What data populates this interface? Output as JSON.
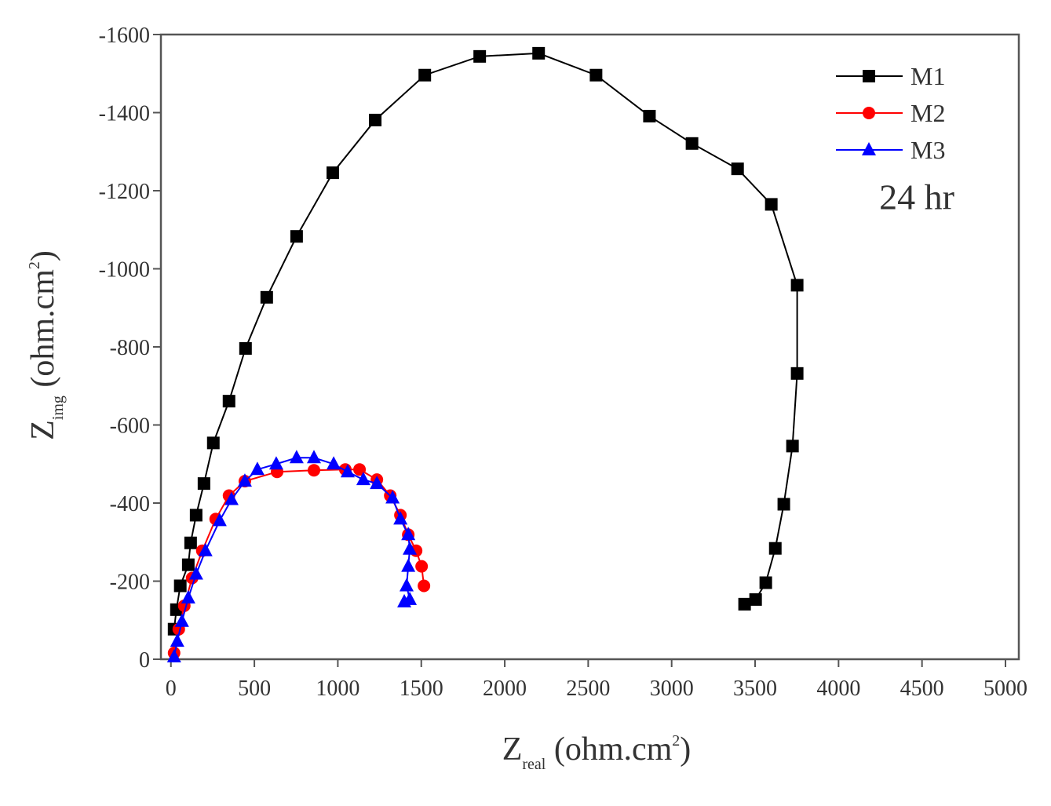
{
  "chart_data": {
    "type": "line",
    "xlabel": [
      "Z",
      "real",
      " (ohm.cm",
      "2",
      ")"
    ],
    "ylabel": [
      "Z",
      "img",
      " (ohm.cm",
      "2",
      ")"
    ],
    "annotation": "24 hr",
    "xlim": [
      -60,
      5080
    ],
    "xticks": [
      0,
      500,
      1000,
      1500,
      2000,
      2500,
      3000,
      3500,
      4000,
      4500,
      5000
    ],
    "ylim": [
      0,
      -1600
    ],
    "yticks": [
      0,
      -200,
      -400,
      -600,
      -800,
      -1000,
      -1200,
      -1400,
      -1600
    ],
    "legend": "top-right",
    "series": [
      {
        "name": "M1",
        "color": "#000000",
        "marker": "square",
        "x": [
          19,
          33,
          56,
          104,
          118,
          151,
          198,
          254,
          348,
          447,
          574,
          753,
          970,
          1224,
          1521,
          1850,
          2203,
          2547,
          2867,
          3122,
          3395,
          3597,
          3752,
          3752,
          3724,
          3672,
          3621,
          3564,
          3503,
          3437
        ],
        "values": [
          -77,
          -127,
          -188,
          -242,
          -298,
          -369,
          -450,
          -554,
          -661,
          -796,
          -927,
          -1083,
          -1246,
          -1381,
          -1496,
          -1544,
          -1552,
          -1496,
          -1391,
          -1321,
          -1256,
          -1165,
          -958,
          -732,
          -546,
          -397,
          -284,
          -196,
          -153,
          -141
        ]
      },
      {
        "name": "M2",
        "color": "#ff0000",
        "marker": "circle",
        "x": [
          19,
          47,
          80,
          127,
          188,
          268,
          348,
          443,
          636,
          857,
          1045,
          1130,
          1234,
          1314,
          1375,
          1422,
          1469,
          1502,
          1516
        ],
        "values": [
          -16,
          -77,
          -137,
          -208,
          -278,
          -359,
          -419,
          -456,
          -480,
          -484,
          -486,
          -486,
          -460,
          -419,
          -369,
          -319,
          -278,
          -238,
          -188
        ]
      },
      {
        "name": "M3",
        "color": "#0000ff",
        "marker": "triangle",
        "x": [
          19,
          38,
          66,
          104,
          151,
          207,
          292,
          363,
          443,
          518,
          631,
          753,
          857,
          975,
          1059,
          1153,
          1234,
          1328,
          1375,
          1422,
          1431,
          1422,
          1412,
          1431,
          1398
        ],
        "values": [
          -6,
          -46,
          -97,
          -157,
          -218,
          -278,
          -355,
          -409,
          -456,
          -486,
          -500,
          -516,
          -516,
          -500,
          -480,
          -460,
          -450,
          -413,
          -359,
          -319,
          -282,
          -238,
          -188,
          -153,
          -147
        ]
      }
    ]
  }
}
